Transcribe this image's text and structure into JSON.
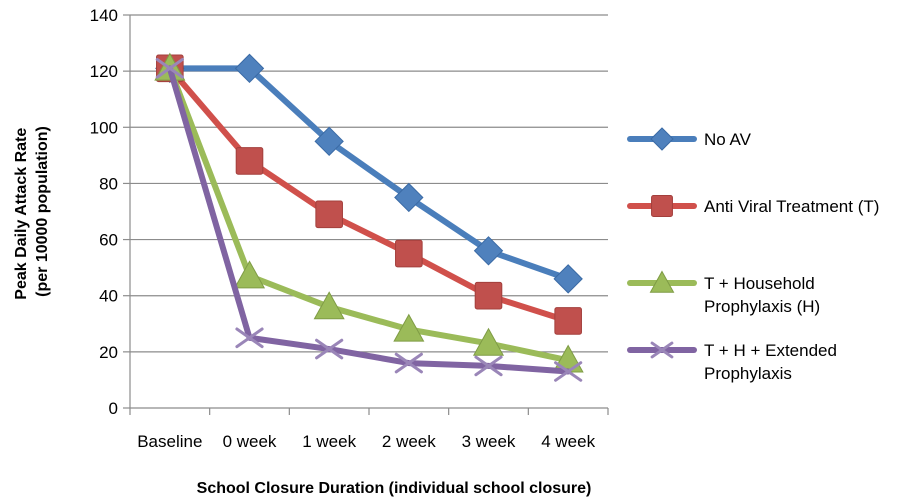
{
  "chart_data": {
    "type": "line",
    "categories": [
      "Baseline",
      "0 week",
      "1 week",
      "2 week",
      "3 week",
      "4 week"
    ],
    "xlabel": "School Closure Duration (individual school closure)",
    "ylabel": [
      "Peak Daily Attack Rate",
      "(per 10000 population)"
    ],
    "ylim": [
      0,
      140
    ],
    "yticks": [
      0,
      20,
      40,
      60,
      80,
      100,
      120,
      140
    ],
    "grid": true,
    "legend": "right",
    "series": [
      {
        "name": "No AV",
        "legend_lines": [
          "No AV"
        ],
        "marker": "diamond",
        "color": "#4a7ebb",
        "marker_color": "#4f81bd",
        "values": [
          121,
          121,
          95,
          75,
          56,
          46
        ]
      },
      {
        "name": "Anti Viral Treatment (T)",
        "legend_lines": [
          "Anti Viral Treatment (T)"
        ],
        "marker": "square",
        "color": "#d0504b",
        "marker_color": "#c0504d",
        "values": [
          121,
          88,
          69,
          55,
          40,
          31
        ]
      },
      {
        "name": "T + Household Prophylaxis (H)",
        "legend_lines": [
          "T + Household",
          "Prophylaxis (H)"
        ],
        "marker": "triangle",
        "color": "#9bbb59",
        "marker_color": "#9bbb59",
        "values": [
          121,
          47,
          36,
          28,
          23,
          17
        ]
      },
      {
        "name": "T + H + Extended Prophylaxis",
        "legend_lines": [
          "T + H + Extended",
          "Prophylaxis"
        ],
        "marker": "x",
        "color": "#8064a2",
        "marker_color": "#9a86b8",
        "values": [
          121,
          25,
          21,
          16,
          15,
          13
        ]
      }
    ]
  }
}
